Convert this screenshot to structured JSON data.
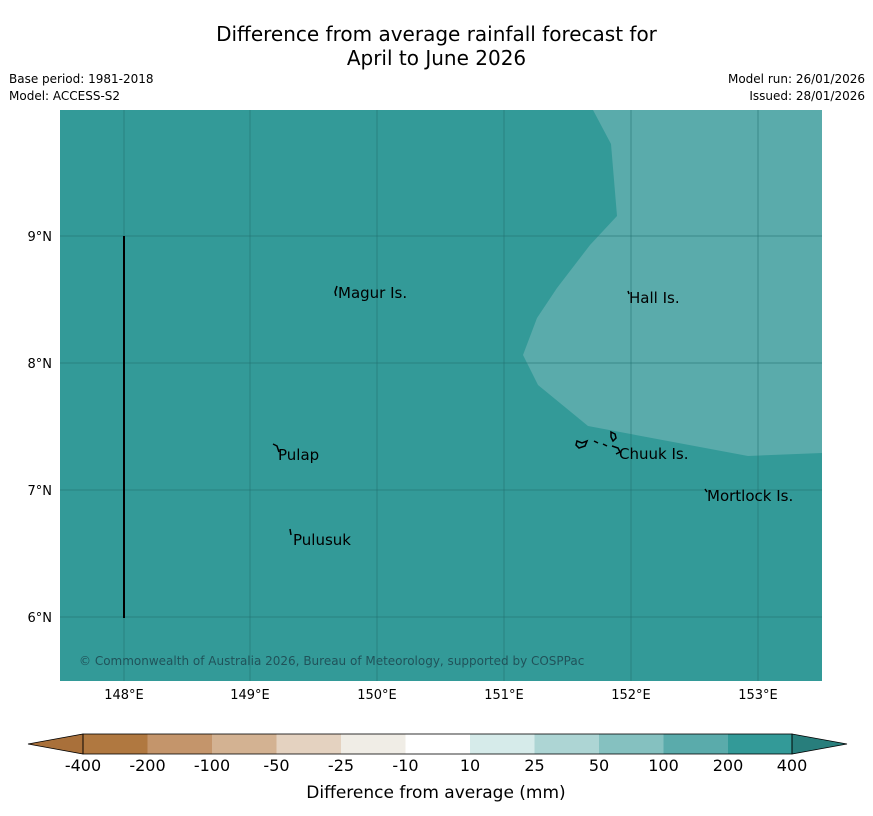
{
  "title": {
    "line1": "Difference from average rainfall forecast for",
    "line2": "April to June 2026"
  },
  "meta": {
    "base_period": "Base period: 1981-2018",
    "model": "Model: ACCESS-S2",
    "model_run": "Model run: 26/01/2026",
    "issued": "Issued: 28/01/2026"
  },
  "map": {
    "lon_ticks": [
      "148°E",
      "149°E",
      "150°E",
      "151°E",
      "152°E",
      "153°E"
    ],
    "lat_ticks": [
      "9°N",
      "8°N",
      "7°N",
      "6°N"
    ],
    "places": [
      "Magur Is.",
      "Hall Is.",
      "Pulap",
      "Chuuk Is.",
      "Mortlock Is.",
      "Pulusuk"
    ],
    "copyright": "© Commonwealth of Australia 2026, Bureau of Meteorology, supported by COSPPac",
    "colors": {
      "zone_200_400": "#339a98",
      "zone_100_200": "#5aabab"
    }
  },
  "legend": {
    "title": "Difference from average (mm)",
    "labels": [
      "-400",
      "-200",
      "-100",
      "-50",
      "-25",
      "-10",
      "10",
      "25",
      "50",
      "100",
      "200",
      "400"
    ],
    "colors": [
      "#a9703a",
      "#b07840",
      "#c4956b",
      "#d3b292",
      "#e4d2c0",
      "#f0ede6",
      "#ffffff",
      "#d6ebea",
      "#add5d4",
      "#85c1c0",
      "#5aabab",
      "#339a98",
      "#287e7c"
    ]
  }
}
